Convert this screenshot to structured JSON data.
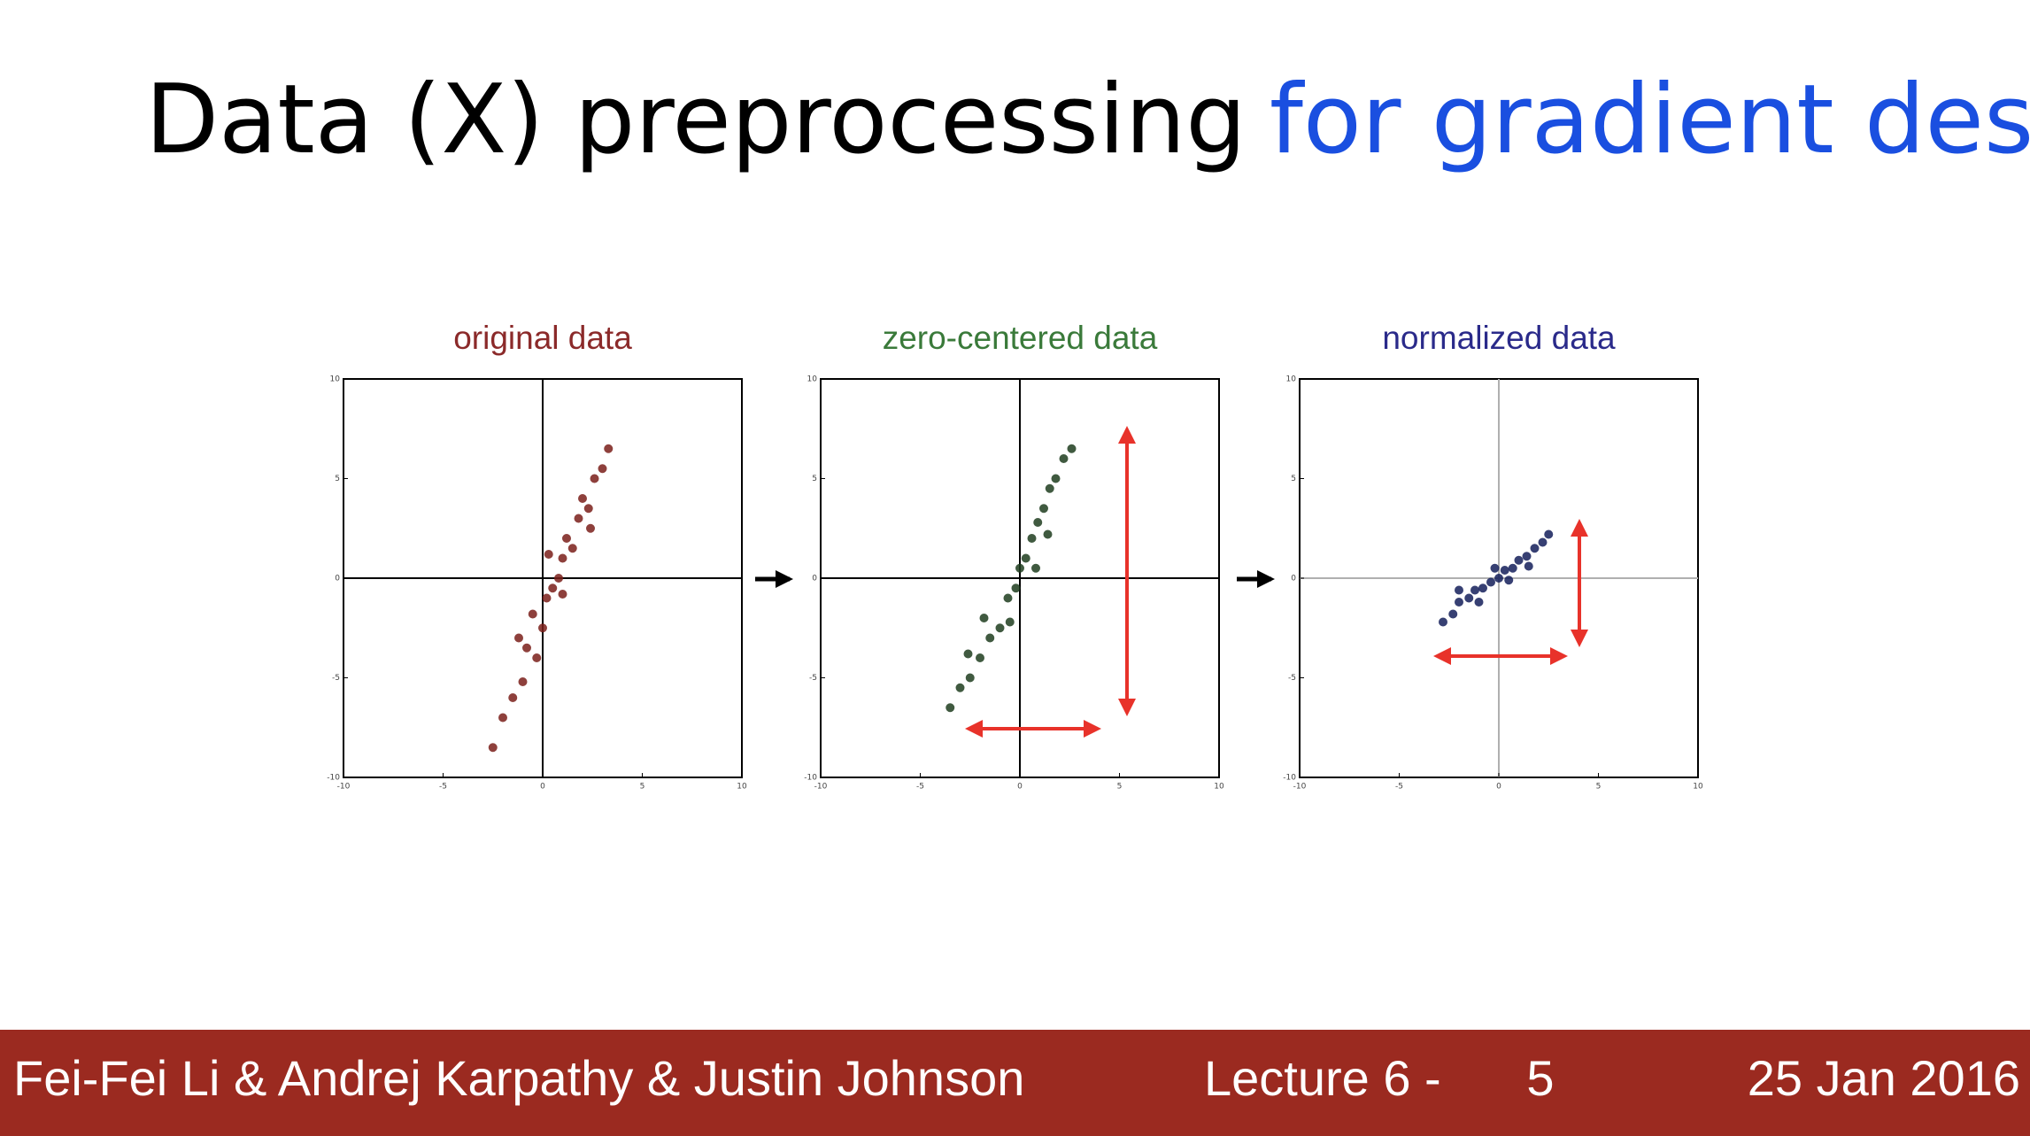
{
  "slide": {
    "title": "Data (X) preprocessing",
    "title_highlight": "for gradient descent",
    "footer": {
      "authors": "Fei-Fei Li & Andrej Karpathy & Justin Johnson",
      "lecture": "Lecture 6 -",
      "page": "5",
      "date": "25 Jan 2016"
    }
  },
  "chart_data": [
    {
      "type": "scatter",
      "title": "original data",
      "color": "#7a1e1a",
      "title_color": "#8b2a2a",
      "zero_line_color": "#000000",
      "x": [
        -2.5,
        -2,
        -1.5,
        -1,
        -0.8,
        -0.3,
        0,
        0.2,
        0.5,
        0.8,
        1,
        1.2,
        1.5,
        1.8,
        2,
        2.3,
        2.6,
        3,
        3.3,
        -0.5,
        1,
        0.3,
        2.4,
        -1.2
      ],
      "values": [
        -8.5,
        -7,
        -6,
        -5.2,
        -3.5,
        -4,
        -2.5,
        -1,
        -0.5,
        0,
        1,
        2,
        1.5,
        3,
        4,
        3.5,
        5,
        5.5,
        6.5,
        -1.8,
        -0.8,
        1.2,
        2.5,
        -3
      ],
      "xlim": [
        -10,
        10
      ],
      "ylim": [
        -10,
        10
      ],
      "xticks": [
        -10,
        -5,
        0,
        5,
        10
      ],
      "yticks": [
        -10,
        -5,
        0,
        5,
        10
      ]
    },
    {
      "type": "scatter",
      "title": "zero-centered data",
      "color": "#1e3d1e",
      "title_color": "#3a7a3a",
      "zero_line_color": "#000000",
      "x": [
        -3.5,
        -3,
        -2.5,
        -2,
        -1.5,
        -1,
        -0.6,
        -0.2,
        0,
        0.3,
        0.6,
        0.9,
        1.2,
        1.5,
        1.8,
        2.2,
        2.6,
        -1.8,
        0.8,
        -0.5,
        1.4,
        -2.6
      ],
      "values": [
        -6.5,
        -5.5,
        -5,
        -4,
        -3,
        -2.5,
        -1,
        -0.5,
        0.5,
        1,
        2,
        2.8,
        3.5,
        4.5,
        5,
        6,
        6.5,
        -2,
        0.5,
        -2.2,
        2.2,
        -3.8
      ],
      "xlim": [
        -10,
        10
      ],
      "ylim": [
        -10,
        10
      ],
      "xticks": [
        -10,
        -5,
        0,
        5,
        10
      ],
      "yticks": [
        -10,
        -5,
        0,
        5,
        10
      ]
    },
    {
      "type": "scatter",
      "title": "normalized data",
      "color": "#141e5a",
      "title_color": "#2a2a8a",
      "zero_line_color": "#b0b0b0",
      "x": [
        -2.8,
        -2.3,
        -2,
        -1.5,
        -1.2,
        -0.8,
        -0.4,
        0,
        0.3,
        0.7,
        1,
        1.4,
        1.8,
        2.2,
        2.5,
        -1,
        0.5,
        -0.2,
        1.5,
        -2
      ],
      "values": [
        -2.2,
        -1.8,
        -1.2,
        -1,
        -0.6,
        -0.5,
        -0.2,
        0,
        0.4,
        0.5,
        0.9,
        1.1,
        1.5,
        1.8,
        2.2,
        -1.2,
        -0.1,
        0.5,
        0.6,
        -0.6
      ],
      "xlim": [
        -10,
        10
      ],
      "ylim": [
        -10,
        10
      ],
      "xticks": [
        -10,
        -5,
        0,
        5,
        10
      ],
      "yticks": [
        -10,
        -5,
        0,
        5,
        10
      ]
    }
  ]
}
